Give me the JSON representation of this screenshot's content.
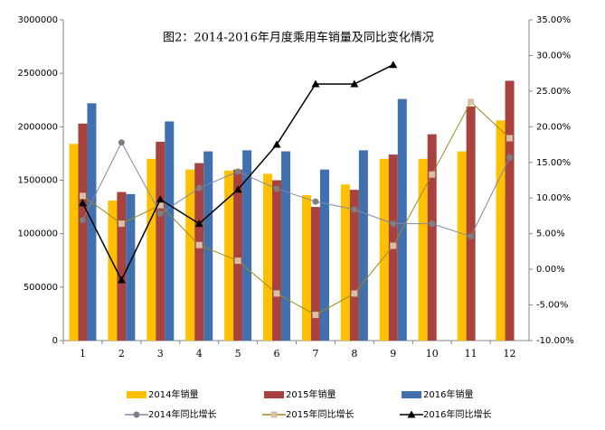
{
  "chart_data": {
    "type": "combo",
    "title": "图2：2014-2016年月度乘用车销量及同比变化情况",
    "categories": [
      "1",
      "2",
      "3",
      "4",
      "5",
      "6",
      "7",
      "8",
      "9",
      "10",
      "11",
      "12"
    ],
    "ylim": [
      0,
      3000000
    ],
    "yticks": [
      0,
      500000,
      1000000,
      1500000,
      2000000,
      2500000,
      3000000
    ],
    "y2lim": [
      -10,
      35
    ],
    "y2ticks": [
      {
        "value": -10,
        "label": "-10.00%"
      },
      {
        "value": -5,
        "label": "-5.00%"
      },
      {
        "value": 0,
        "label": "0.00%"
      },
      {
        "value": 5,
        "label": "5.00%"
      },
      {
        "value": 10,
        "label": "10.00%"
      },
      {
        "value": 15,
        "label": "15.00%"
      },
      {
        "value": 20,
        "label": "20.00%"
      },
      {
        "value": 25,
        "label": "25.00%"
      },
      {
        "value": 30,
        "label": "30.00%"
      },
      {
        "value": 35,
        "label": "35.00%"
      }
    ],
    "grid": false,
    "legend": "bottom",
    "series": [
      {
        "name": "2014年销量",
        "type": "bar",
        "color": "#FFC000",
        "values": [
          1840000,
          1310000,
          1700000,
          1600000,
          1590000,
          1560000,
          1360000,
          1460000,
          1700000,
          1700000,
          1770000,
          2060000
        ]
      },
      {
        "name": "2015年销量",
        "type": "bar",
        "color": "#A8423F",
        "values": [
          2030000,
          1390000,
          1860000,
          1660000,
          1600000,
          1500000,
          1250000,
          1410000,
          1740000,
          1930000,
          2190000,
          2430000
        ]
      },
      {
        "name": "2016年销量",
        "type": "bar",
        "color": "#4170AE",
        "values": [
          2220000,
          1370000,
          2050000,
          1770000,
          1780000,
          1770000,
          1600000,
          1780000,
          2260000,
          null,
          null,
          null
        ]
      },
      {
        "name": "2014年同比增长",
        "type": "line",
        "axis": "y2",
        "color": "#7E88A8",
        "marker": "circle",
        "marker_color": "#7F7F7F",
        "values": [
          6.9,
          17.8,
          7.8,
          11.4,
          13.7,
          11.3,
          9.5,
          8.4,
          6.4,
          6.4,
          4.6,
          15.7
        ]
      },
      {
        "name": "2015年同比增长",
        "type": "line",
        "axis": "y2",
        "color": "#9C8A1E",
        "marker": "square",
        "marker_color": "#D9BFA3",
        "values": [
          10.3,
          6.4,
          9.0,
          3.4,
          1.2,
          -3.4,
          -6.4,
          -3.4,
          3.3,
          13.3,
          23.5,
          18.4
        ]
      },
      {
        "name": "2016年同比增长",
        "type": "line",
        "axis": "y2",
        "color": "#000000",
        "marker": "triangle",
        "marker_color": "#000000",
        "values": [
          9.3,
          -1.5,
          9.8,
          6.4,
          11.2,
          17.5,
          26.0,
          26.0,
          28.7,
          null,
          null,
          null
        ]
      }
    ]
  }
}
